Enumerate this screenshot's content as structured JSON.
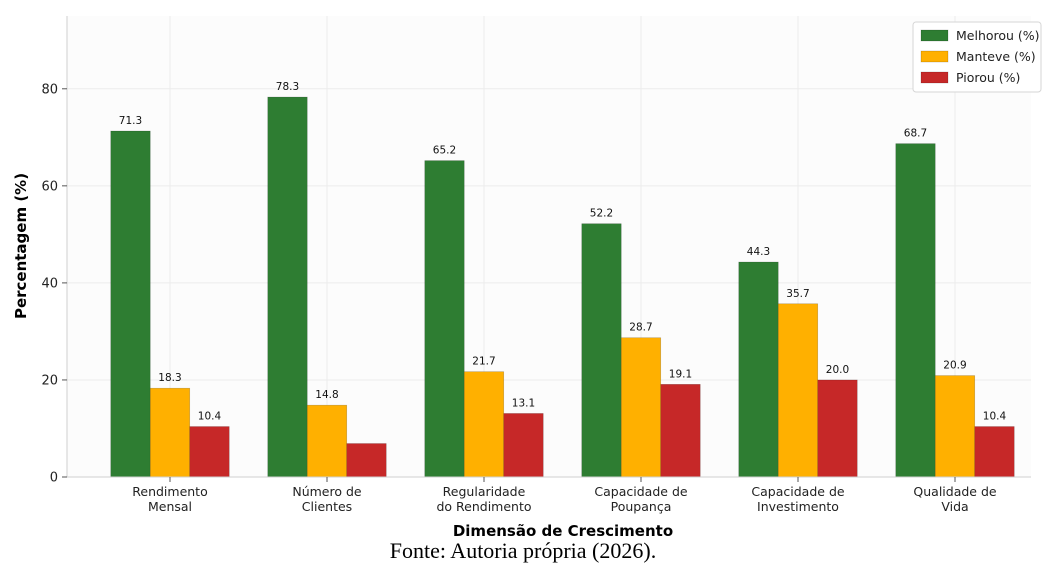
{
  "chart_data": {
    "type": "bar",
    "categories": [
      [
        "Rendimento",
        "Mensal"
      ],
      [
        "Número de",
        "Clientes"
      ],
      [
        "Regularidade",
        "do Rendimento"
      ],
      [
        "Capacidade de",
        "Poupança"
      ],
      [
        "Capacidade de",
        "Investimento"
      ],
      [
        "Qualidade de",
        "Vida"
      ]
    ],
    "series": [
      {
        "name": "Melhorou (%)",
        "color": "#2e7d32",
        "values": [
          71.3,
          78.3,
          65.2,
          52.2,
          44.3,
          68.7
        ]
      },
      {
        "name": "Manteve (%)",
        "color": "#ffb000",
        "values": [
          18.3,
          14.8,
          21.7,
          28.7,
          35.7,
          20.9
        ]
      },
      {
        "name": "Piorou (%)",
        "color": "#c62828",
        "values": [
          10.4,
          6.9,
          13.1,
          19.1,
          20.0,
          10.4
        ]
      }
    ],
    "data_labels": [
      [
        "71.3",
        "78.3",
        "65.2",
        "52.2",
        "44.3",
        "68.7"
      ],
      [
        "18.3",
        "14.8",
        "21.7",
        "28.7",
        "35.7",
        "20.9"
      ],
      [
        "10.4",
        "",
        "13.1",
        "19.1",
        "20.0",
        "10.4"
      ]
    ],
    "xlabel": "Dimensão de Crescimento",
    "ylabel": "Percentagem (%)",
    "ylim": [
      0,
      95
    ],
    "yticks": [
      0,
      20,
      40,
      60,
      80
    ],
    "grid": true,
    "legend_position": "top-right"
  },
  "caption": "Fonte: Autoria própria (2026)."
}
